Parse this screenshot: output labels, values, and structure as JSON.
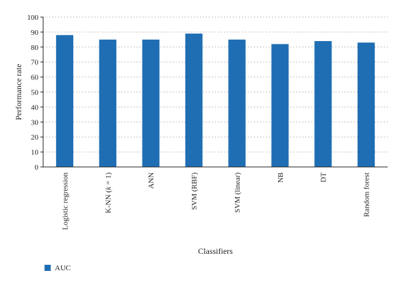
{
  "chart_data": {
    "type": "bar",
    "categories": [
      "Logistic regression",
      "K-NN (k = 1)",
      "ANN",
      "SVM (RBF)",
      "SVM (linear)",
      "NB",
      "DT",
      "Random forest"
    ],
    "category_parts": [
      [
        {
          "t": "Logistic regression",
          "i": false
        }
      ],
      [
        {
          "t": "K-NN (",
          "i": false
        },
        {
          "t": "k",
          "i": true
        },
        {
          "t": " = 1)",
          "i": false
        }
      ],
      [
        {
          "t": "ANN",
          "i": false
        }
      ],
      [
        {
          "t": "SVM (RBF)",
          "i": false
        }
      ],
      [
        {
          "t": "SVM (linear)",
          "i": false
        }
      ],
      [
        {
          "t": "NB",
          "i": false
        }
      ],
      [
        {
          "t": "DT",
          "i": false
        }
      ],
      [
        {
          "t": "Random forest",
          "i": false
        }
      ]
    ],
    "series": [
      {
        "name": "AUC",
        "color": "#1f6eb4",
        "values": [
          88,
          85,
          85,
          89,
          85,
          82,
          84,
          83
        ]
      }
    ],
    "xlabel": "Classifiers",
    "ylabel": "Performance rate",
    "ylim": [
      0,
      100
    ],
    "yticks": [
      "0",
      "10",
      "20",
      "30",
      "40",
      "50",
      "60",
      "70",
      "80",
      "90",
      "100"
    ],
    "grid": "horizontal-dotted",
    "legend_position": "bottom-left"
  }
}
